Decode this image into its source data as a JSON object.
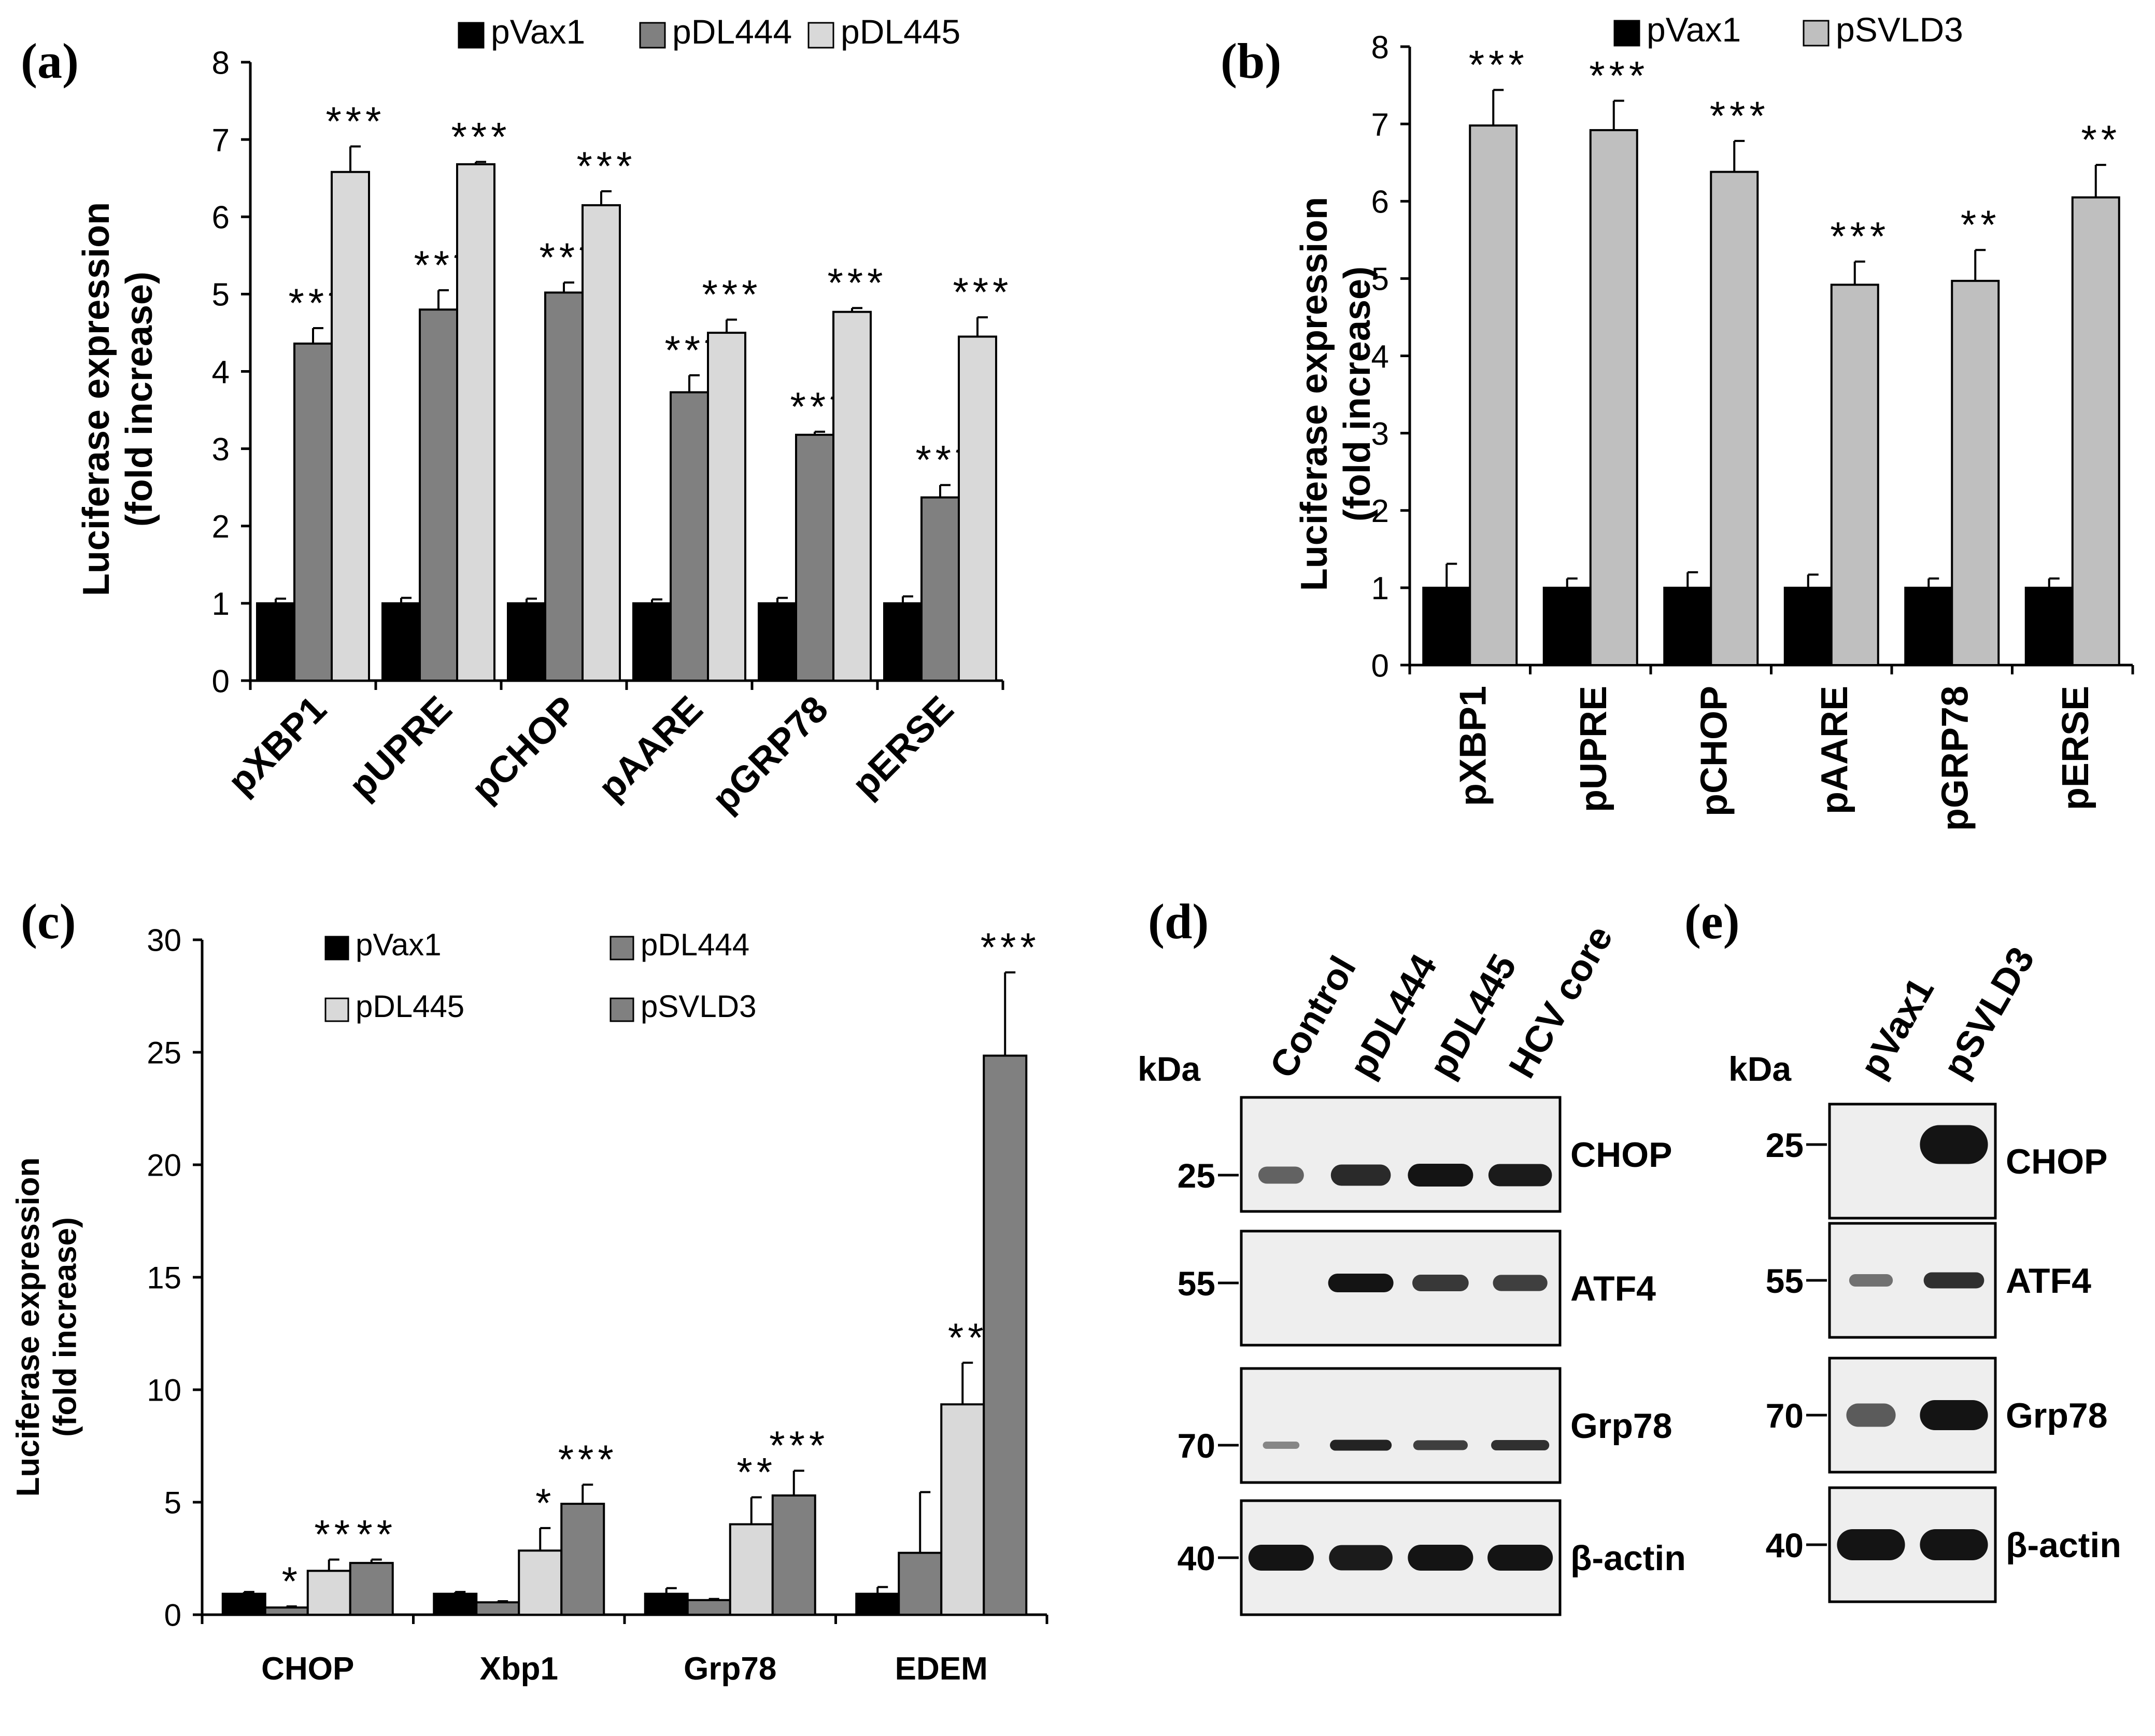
{
  "colors": {
    "black": "#000000",
    "dark_gray": "#808080",
    "light_gray": "#d9d9d9",
    "mid_gray": "#bfbfbf",
    "band": "#141414",
    "blot_bg": "#eeeeee"
  },
  "chart_data": [
    {
      "panel": "(a)",
      "type": "bar",
      "ylabel": [
        "Luciferase expression",
        "(fold increase)"
      ],
      "ylim": [
        0,
        8
      ],
      "yticks": [
        0,
        1,
        2,
        3,
        4,
        5,
        6,
        7,
        8
      ],
      "categories": [
        "pXBP1",
        "pUPRE",
        "pCHOP",
        "pAARE",
        "pGRP78",
        "pERSE"
      ],
      "legend": [
        "pVax1",
        "pDL444",
        "pDL445"
      ],
      "series": [
        {
          "name": "pVax1",
          "color": "#000000",
          "values": [
            1,
            1,
            1,
            1,
            1,
            1
          ],
          "errors": [
            0.06,
            0.07,
            0.06,
            0.05,
            0.07,
            0.09
          ],
          "sig": [
            "",
            "",
            "",
            "",
            "",
            ""
          ]
        },
        {
          "name": "pDL444",
          "color": "#808080",
          "values": [
            4.36,
            4.8,
            5.02,
            3.73,
            3.18,
            2.37
          ],
          "errors": [
            0.2,
            0.25,
            0.13,
            0.22,
            0.04,
            0.16
          ],
          "sig": [
            "***",
            "***",
            "***",
            "***",
            "***",
            "***"
          ]
        },
        {
          "name": "pDL445",
          "color": "#d9d9d9",
          "values": [
            6.58,
            6.68,
            6.15,
            4.5,
            4.77,
            4.45
          ],
          "errors": [
            0.33,
            0.03,
            0.18,
            0.17,
            0.05,
            0.25
          ],
          "sig": [
            "***",
            "***",
            "***",
            "***",
            "***",
            "***"
          ]
        }
      ]
    },
    {
      "panel": "(b)",
      "type": "bar",
      "ylabel": [
        "Luciferase expression",
        "(fold increase)"
      ],
      "ylim": [
        0,
        8
      ],
      "yticks": [
        0,
        1,
        2,
        3,
        4,
        5,
        6,
        7,
        8
      ],
      "categories": [
        "pXBP1",
        "pUPRE",
        "pCHOP",
        "pAARE",
        "pGRP78",
        "pERSE"
      ],
      "legend": [
        "pVax1",
        "pSVLD3"
      ],
      "series": [
        {
          "name": "pVax1",
          "color": "#000000",
          "values": [
            1,
            1,
            1,
            1,
            1,
            1
          ],
          "errors": [
            0.31,
            0.12,
            0.2,
            0.17,
            0.12,
            0.12
          ],
          "sig": [
            "",
            "",
            "",
            "",
            "",
            ""
          ]
        },
        {
          "name": "pSVLD3",
          "color": "#bfbfbf",
          "values": [
            6.98,
            6.92,
            6.38,
            4.92,
            4.97,
            6.05
          ],
          "errors": [
            0.46,
            0.38,
            0.4,
            0.3,
            0.4,
            0.42
          ],
          "sig": [
            "***",
            "***",
            "***",
            "***",
            "**",
            "**"
          ]
        }
      ]
    },
    {
      "panel": "(c)",
      "type": "bar",
      "ylabel": [
        "Luciferase expression",
        "(fold increase)"
      ],
      "ylim": [
        0,
        30
      ],
      "yticks": [
        0,
        5,
        10,
        15,
        20,
        25,
        30
      ],
      "categories": [
        "CHOP",
        "Xbp1",
        "Grp78",
        "EDEM"
      ],
      "legend": [
        "pVax1",
        "pDL444",
        "pDL445",
        "pSVLD3"
      ],
      "series": [
        {
          "name": "pVax1",
          "color": "#000000",
          "values": [
            0.93,
            0.93,
            0.93,
            0.93
          ],
          "errors": [
            0.08,
            0.08,
            0.25,
            0.3
          ],
          "sig": [
            "",
            "",
            "",
            ""
          ]
        },
        {
          "name": "pDL444",
          "color": "#808080",
          "values": [
            0.32,
            0.55,
            0.65,
            2.75
          ],
          "errors": [
            0.05,
            0.05,
            0.05,
            2.7
          ],
          "sig": [
            "*",
            "",
            "",
            ""
          ]
        },
        {
          "name": "pDL445",
          "color": "#d9d9d9",
          "values": [
            1.95,
            2.85,
            4.02,
            9.35
          ],
          "errors": [
            0.5,
            1.0,
            1.2,
            1.85
          ],
          "sig": [
            "**",
            "*",
            "**",
            "**"
          ]
        },
        {
          "name": "pSVLD3",
          "color": "#808080",
          "values": [
            2.3,
            4.93,
            5.3,
            24.85
          ],
          "errors": [
            0.15,
            0.85,
            1.1,
            3.7
          ],
          "sig": [
            "**",
            "***",
            "***",
            "***"
          ]
        }
      ]
    }
  ],
  "blots": [
    {
      "panel": "(d)",
      "kda_label": "kDa",
      "lanes": [
        "Control",
        "pDL444",
        "pDL445",
        "HCV core"
      ],
      "rows": [
        {
          "name": "CHOP",
          "marker": "25",
          "intensity": [
            0.45,
            0.85,
            1.0,
            0.95
          ]
        },
        {
          "name": "ATF4",
          "marker": "55",
          "intensity": [
            0.0,
            1.0,
            0.75,
            0.7
          ]
        },
        {
          "name": "Grp78",
          "marker": "70",
          "intensity": [
            0.2,
            0.9,
            0.7,
            0.8
          ]
        },
        {
          "name": "β-actin",
          "marker": "40",
          "intensity": [
            1.0,
            0.95,
            1.0,
            1.0
          ]
        }
      ]
    },
    {
      "panel": "(e)",
      "kda_label": "kDa",
      "lanes": [
        "pVax1",
        "pSVLD3"
      ],
      "rows": [
        {
          "name": "CHOP",
          "marker": "25",
          "intensity": [
            0.0,
            1.0
          ]
        },
        {
          "name": "ATF4",
          "marker": "55",
          "intensity": [
            0.35,
            0.8
          ]
        },
        {
          "name": "Grp78",
          "marker": "70",
          "intensity": [
            0.5,
            1.0
          ]
        },
        {
          "name": "β-actin",
          "marker": "40",
          "intensity": [
            1.0,
            1.0
          ]
        }
      ]
    }
  ]
}
